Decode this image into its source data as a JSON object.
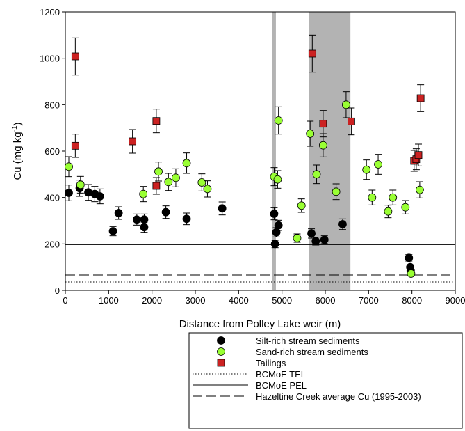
{
  "chart_data": {
    "type": "scatter",
    "x_label": "Distance from Polley Lake weir (m)",
    "y_label": {
      "text": "Cu (mg kg",
      "superscript": "-1",
      "suffix": ")"
    },
    "xlim": [
      0,
      9000
    ],
    "xticks": [
      0,
      1000,
      2000,
      3000,
      4000,
      5000,
      6000,
      7000,
      8000,
      9000
    ],
    "ylim": [
      0,
      1200
    ],
    "yticks": [
      0,
      200,
      400,
      600,
      800,
      1000,
      1200
    ],
    "shaded_regions": [
      {
        "x": [
          4780,
          4860
        ],
        "color": "#b3b3b3"
      },
      {
        "x": [
          5630,
          6580
        ],
        "color": "#b3b3b3"
      }
    ],
    "series": [
      {
        "name": "Silt-rich stream sediments",
        "color": "#000000",
        "marker": "circle",
        "x": [
          80,
          330,
          530,
          680,
          800,
          1100,
          1230,
          1650,
          1820,
          1820,
          2320,
          2800,
          3620,
          4820,
          4840,
          4870,
          4920,
          5680,
          5780,
          5980,
          6400,
          7930,
          7960,
          7970
        ],
        "values": [
          420,
          440,
          422,
          415,
          405,
          255,
          333,
          305,
          305,
          272,
          337,
          308,
          353,
          330,
          200,
          250,
          280,
          245,
          212,
          218,
          285,
          140,
          100,
          85
        ],
        "errors": [
          34,
          35,
          34,
          33,
          32,
          20,
          27,
          24,
          24,
          22,
          27,
          25,
          28,
          26,
          16,
          20,
          22,
          20,
          17,
          17,
          23,
          14,
          10,
          9
        ]
      },
      {
        "name": "Sand-rich stream sediments",
        "color": "#99ff33",
        "marker": "circle",
        "x": [
          80,
          350,
          1800,
          2150,
          2380,
          2550,
          2800,
          3150,
          3280,
          4820,
          4900,
          4920,
          5350,
          5450,
          5650,
          5800,
          5950,
          6250,
          6480,
          6950,
          7080,
          7220,
          7450,
          7560,
          7850,
          7980,
          8180
        ],
        "values": [
          533,
          455,
          415,
          512,
          467,
          485,
          548,
          465,
          437,
          490,
          478,
          732,
          225,
          365,
          675,
          500,
          625,
          425,
          800,
          520,
          400,
          543,
          340,
          400,
          358,
          72,
          433
        ],
        "errors": [
          43,
          36,
          33,
          41,
          37,
          39,
          44,
          37,
          35,
          39,
          38,
          59,
          18,
          29,
          54,
          40,
          50,
          34,
          56,
          42,
          32,
          43,
          27,
          32,
          29,
          8,
          35
        ]
      },
      {
        "name": "Tailings",
        "color": "#cc2222",
        "marker": "square",
        "x": [
          230,
          230,
          1550,
          2100,
          2100,
          5700,
          5950,
          6600,
          8050,
          8100,
          8150,
          8200
        ],
        "values": [
          1008,
          623,
          642,
          450,
          730,
          1020,
          718,
          728,
          558,
          565,
          583,
          828
        ],
        "errors": [
          80,
          50,
          51,
          36,
          51,
          80,
          57,
          58,
          45,
          45,
          47,
          58
        ]
      }
    ],
    "reference_lines": [
      {
        "name": "BCMoE TEL",
        "value": 36,
        "dash": "dotted"
      },
      {
        "name": "BCMoE PEL",
        "value": 197,
        "dash": "solid"
      },
      {
        "name": "Hazeltine Creek average Cu (1995-2003)",
        "value": 66,
        "dash": "dashed"
      }
    ]
  }
}
